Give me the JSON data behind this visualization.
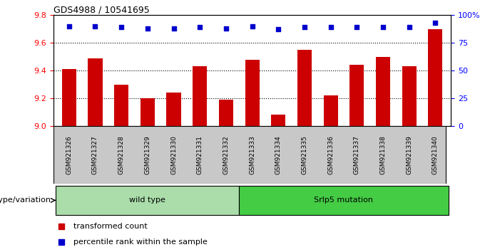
{
  "title": "GDS4988 / 10541695",
  "samples": [
    "GSM921326",
    "GSM921327",
    "GSM921328",
    "GSM921329",
    "GSM921330",
    "GSM921331",
    "GSM921332",
    "GSM921333",
    "GSM921334",
    "GSM921335",
    "GSM921336",
    "GSM921337",
    "GSM921338",
    "GSM921339",
    "GSM921340"
  ],
  "bar_values": [
    9.41,
    9.49,
    9.3,
    9.2,
    9.24,
    9.43,
    9.19,
    9.48,
    9.08,
    9.55,
    9.22,
    9.44,
    9.5,
    9.43,
    9.7
  ],
  "percentile_values": [
    90,
    90,
    89,
    88,
    88,
    89,
    88,
    90,
    87,
    89,
    89,
    89,
    89,
    89,
    93
  ],
  "bar_color": "#cc0000",
  "dot_color": "#0000cc",
  "ylim_left": [
    9.0,
    9.8
  ],
  "ylim_right": [
    0,
    100
  ],
  "yticks_left": [
    9.0,
    9.2,
    9.4,
    9.6,
    9.8
  ],
  "yticks_right": [
    0,
    25,
    50,
    75,
    100
  ],
  "ytick_labels_right": [
    "0",
    "25",
    "50",
    "75",
    "100%"
  ],
  "grid_lines": [
    9.2,
    9.4,
    9.6
  ],
  "wild_type_count": 7,
  "mutation_count": 8,
  "wild_type_label": "wild type",
  "mutation_label": "Srlp5 mutation",
  "genotype_label": "genotype/variation",
  "legend_bar_label": "transformed count",
  "legend_dot_label": "percentile rank within the sample",
  "wild_type_color": "#aaddaa",
  "mutation_color": "#44cc44",
  "sample_bg_color": "#c8c8c8",
  "bar_width": 0.55
}
